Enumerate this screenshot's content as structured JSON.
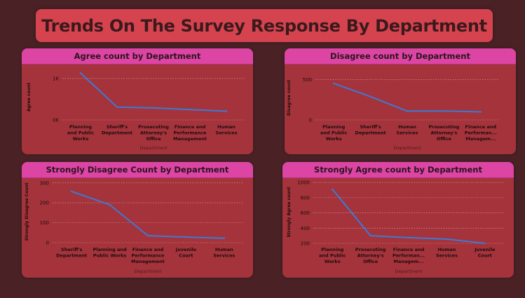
{
  "page_title": "Trends On The Survey Response By Department",
  "colors": {
    "background": "#4a2226",
    "banner": "#d5434f",
    "panel": "#a5333b",
    "panel_header": "#dc45a3",
    "line": "#3a7bd5",
    "gridline": "#d9a0a6"
  },
  "chart_data": [
    {
      "type": "line",
      "title": "Agree count by Department",
      "xlabel": "Department",
      "ylabel": "Agree count",
      "categories": [
        [
          "Planning",
          "and Public",
          "Works"
        ],
        [
          "Sheriff's",
          "Department"
        ],
        [
          "Prosecuting",
          "Attorney's",
          "Office"
        ],
        [
          "Finance and",
          "Performance",
          "Management"
        ],
        [
          "Human",
          "Services"
        ]
      ],
      "values": [
        1130,
        310,
        290,
        250,
        210
      ],
      "ylim": [
        0,
        1100
      ],
      "yticks": [
        0,
        1000
      ],
      "yticklabels": [
        "0K",
        "1K"
      ],
      "grid": true
    },
    {
      "type": "line",
      "title": "Disagree count by Department",
      "xlabel": "Department",
      "ylabel": "Disagree count",
      "categories": [
        [
          "Planning",
          "and Public",
          "Works"
        ],
        [
          "Sheriff's",
          "Department"
        ],
        [
          "Human",
          "Services"
        ],
        [
          "Prosecuting",
          "Attorney's",
          "Office"
        ],
        [
          "Finance and",
          "Performan...",
          "Managem..."
        ]
      ],
      "values": [
        455,
        290,
        110,
        110,
        100
      ],
      "ylim": [
        0,
        550
      ],
      "yticks": [
        0,
        500
      ],
      "yticklabels": [
        "0",
        "500"
      ],
      "grid": true
    },
    {
      "type": "line",
      "title": "Strongly Disagree Count by Department",
      "xlabel": "Department",
      "ylabel": "Strongly Disagree Count",
      "categories": [
        [
          "Sheriff's",
          "Department"
        ],
        [
          "Planning and",
          "Public Works"
        ],
        [
          "Finance and",
          "Performance",
          "Management"
        ],
        [
          "Juvenile",
          "Court"
        ],
        [
          "Human",
          "Services"
        ]
      ],
      "values": [
        257,
        190,
        35,
        28,
        22
      ],
      "ylim": [
        0,
        310
      ],
      "yticks": [
        0,
        100,
        200,
        300
      ],
      "yticklabels": [
        "0",
        "100",
        "200",
        "300"
      ],
      "grid": true
    },
    {
      "type": "line",
      "title": "Strongly Agree count by Department",
      "xlabel": "Department",
      "ylabel": "Strongly Agree count",
      "categories": [
        [
          "Planning",
          "and Public",
          "Works"
        ],
        [
          "Prosecuting",
          "Attorney's",
          "Office"
        ],
        [
          "Finance and",
          "Performan...",
          "Managem..."
        ],
        [
          "Human",
          "Services"
        ],
        [
          "Juvenile",
          "Court"
        ]
      ],
      "values": [
        910,
        300,
        275,
        255,
        200
      ],
      "ylim": [
        200,
        1020
      ],
      "yticks": [
        200,
        400,
        600,
        800,
        1000
      ],
      "yticklabels": [
        "200",
        "400",
        "600",
        "800",
        "1000"
      ],
      "grid": true
    }
  ]
}
